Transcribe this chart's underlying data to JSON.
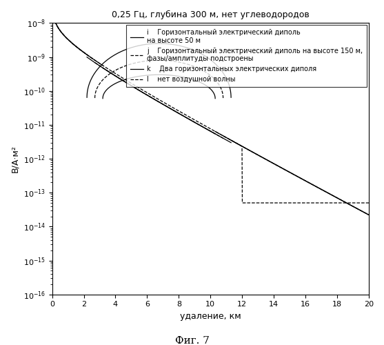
{
  "title": "0,25 Гц, глубина 300 м, нет углеводородов",
  "xlabel": "удаление, км",
  "ylabel": "В/А·м²",
  "figcaption": "Фиг. 7",
  "xlim": [
    0,
    20
  ],
  "ylim": [
    1e-16,
    1e-08
  ],
  "legend_i": "Горизонтальный электрический диполь\nна высоте 50 м",
  "legend_j": "Горизонтальный электрический диполь на высоте 150 м,\nфазы/амплитуды подстроены",
  "legend_k": "Два горизонтальных электрических диполя",
  "legend_l": "нет воздушной волны",
  "title_fontsize": 9,
  "axis_fontsize": 9,
  "caption_fontsize": 11,
  "tick_fontsize": 8,
  "legend_fontsize": 7
}
